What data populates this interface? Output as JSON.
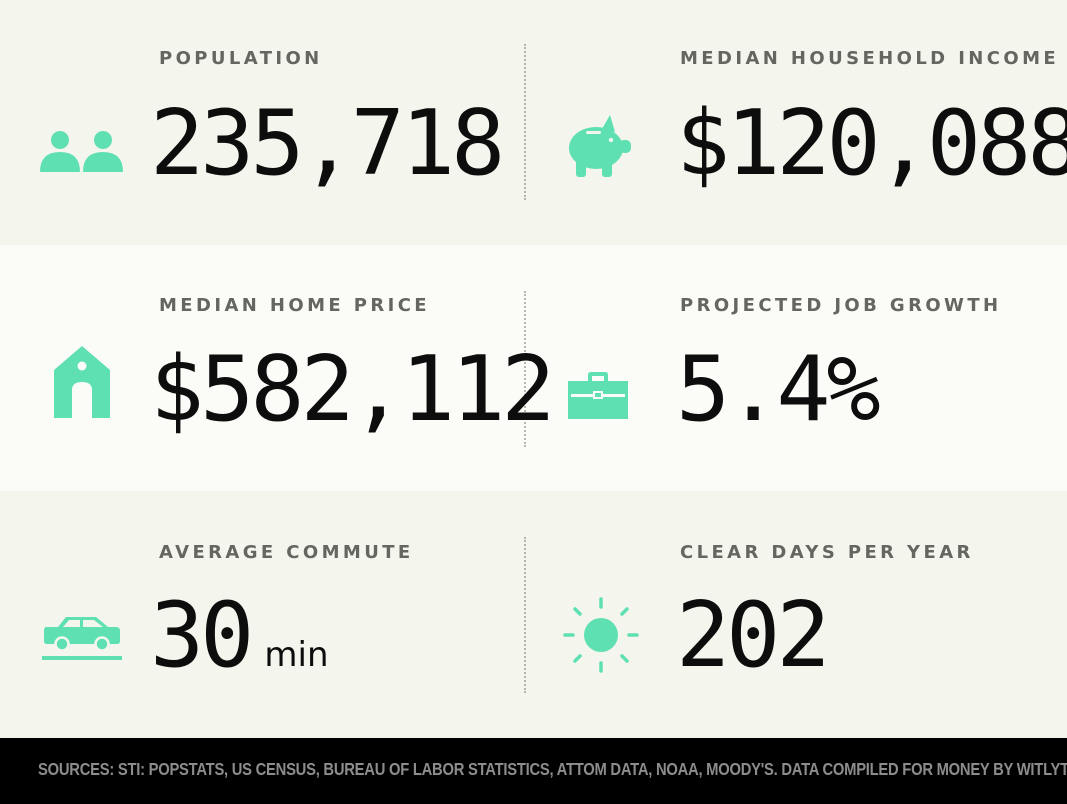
{
  "accent_color": "#5ee0b3",
  "stats": {
    "population": {
      "label": "POPULATION",
      "value": "235,718",
      "icon": "people-icon"
    },
    "income": {
      "label": "MEDIAN HOUSEHOLD INCOME",
      "value": "$120,088",
      "icon": "piggy-bank-icon"
    },
    "home_price": {
      "label": "MEDIAN HOME PRICE",
      "value": "$582,112",
      "icon": "house-icon"
    },
    "job_growth": {
      "label": "PROJECTED JOB GROWTH",
      "value": "5.4%",
      "icon": "briefcase-icon"
    },
    "commute": {
      "label": "AVERAGE COMMUTE",
      "value": "30",
      "unit": "min",
      "icon": "car-icon"
    },
    "clear_days": {
      "label": "CLEAR DAYS PER YEAR",
      "value": "202",
      "icon": "sun-icon"
    }
  },
  "footer": {
    "sources": "SOURCES: STI: POPSTATS, US CENSUS, BUREAU OF LABOR STATISTICS, ATTOM DATA, NOAA, MOODY'S. DATA COMPILED FOR MONEY BY WITLYTIC."
  }
}
